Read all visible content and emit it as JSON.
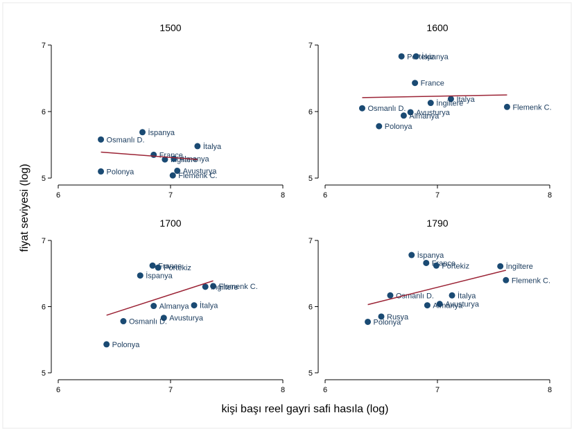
{
  "figure": {
    "ylabel": "fiyat seviyesi (log)",
    "xlabel": "kişi başı reel gayri safi hasıla (log)",
    "colors": {
      "point": "#1a4a73",
      "label": "#1a3b5d",
      "fit": "#9b2335",
      "axis": "#000000"
    }
  },
  "chart_data": [
    {
      "type": "scatter",
      "title": "1500",
      "xlim": [
        6,
        8
      ],
      "ylim": [
        5,
        7
      ],
      "xticks": [
        "6",
        "7",
        "8"
      ],
      "yticks": [
        "5",
        "6",
        "7"
      ],
      "points": [
        {
          "label": "İspanya",
          "x": 6.75,
          "y": 5.69
        },
        {
          "label": "Osmanlı D.",
          "x": 6.38,
          "y": 5.58
        },
        {
          "label": "France",
          "x": 6.85,
          "y": 5.35
        },
        {
          "label": "İngiltere",
          "x": 6.95,
          "y": 5.28
        },
        {
          "label": "Almanya",
          "x": 7.03,
          "y": 5.29
        },
        {
          "label": "İtalya",
          "x": 7.24,
          "y": 5.48
        },
        {
          "label": "Avusturya",
          "x": 7.06,
          "y": 5.11
        },
        {
          "label": "Polonya",
          "x": 6.38,
          "y": 5.1
        },
        {
          "label": "Flemenk C.",
          "x": 7.02,
          "y": 5.04
        }
      ],
      "fit": {
        "x": [
          6.38,
          7.24
        ],
        "y": [
          5.39,
          5.28
        ]
      }
    },
    {
      "type": "scatter",
      "title": "1600",
      "xlim": [
        6,
        8
      ],
      "ylim": [
        5,
        7
      ],
      "xticks": [
        "6",
        "7",
        "8"
      ],
      "yticks": [
        "5",
        "6",
        "7"
      ],
      "points": [
        {
          "label": "Portekiz",
          "x": 6.68,
          "y": 6.83
        },
        {
          "label": "İspanya",
          "x": 6.81,
          "y": 6.83
        },
        {
          "label": "France",
          "x": 6.8,
          "y": 6.43
        },
        {
          "label": "İtalya",
          "x": 7.12,
          "y": 6.19
        },
        {
          "label": "İngiltere",
          "x": 6.94,
          "y": 6.13
        },
        {
          "label": "Flemenk C.",
          "x": 7.62,
          "y": 6.07
        },
        {
          "label": "Osmanlı D.",
          "x": 6.33,
          "y": 6.05
        },
        {
          "label": "Avusturya",
          "x": 6.76,
          "y": 5.99
        },
        {
          "label": "Almanya",
          "x": 6.7,
          "y": 5.94
        },
        {
          "label": "Polonya",
          "x": 6.48,
          "y": 5.78
        }
      ],
      "fit": {
        "x": [
          6.33,
          7.62
        ],
        "y": [
          6.21,
          6.25
        ]
      }
    },
    {
      "type": "scatter",
      "title": "1700",
      "xlim": [
        6,
        8
      ],
      "ylim": [
        5,
        7
      ],
      "xticks": [
        "6",
        "7",
        "8"
      ],
      "yticks": [
        "5",
        "6",
        "7"
      ],
      "points": [
        {
          "label": "France",
          "x": 6.84,
          "y": 6.62
        },
        {
          "label": "Portekiz",
          "x": 6.89,
          "y": 6.59
        },
        {
          "label": "İspanya",
          "x": 6.73,
          "y": 6.47
        },
        {
          "label": "Flemenk C.",
          "x": 7.38,
          "y": 6.31
        },
        {
          "label": "İngiltere",
          "x": 7.31,
          "y": 6.3
        },
        {
          "label": "İtalya",
          "x": 7.21,
          "y": 6.02
        },
        {
          "label": "Almanya",
          "x": 6.85,
          "y": 6.01
        },
        {
          "label": "Avusturya",
          "x": 6.94,
          "y": 5.83
        },
        {
          "label": "Osmanlı D.",
          "x": 6.58,
          "y": 5.78
        },
        {
          "label": "Polonya",
          "x": 6.43,
          "y": 5.43
        }
      ],
      "fit": {
        "x": [
          6.43,
          7.38
        ],
        "y": [
          5.87,
          6.39
        ]
      }
    },
    {
      "type": "scatter",
      "title": "1790",
      "xlim": [
        6,
        8
      ],
      "ylim": [
        5,
        7
      ],
      "xticks": [
        "6",
        "7",
        "8"
      ],
      "yticks": [
        "5",
        "6",
        "7"
      ],
      "points": [
        {
          "label": "İspanya",
          "x": 6.77,
          "y": 6.78
        },
        {
          "label": "France",
          "x": 6.9,
          "y": 6.66
        },
        {
          "label": "Portekiz",
          "x": 6.99,
          "y": 6.62
        },
        {
          "label": "İngiltere",
          "x": 7.56,
          "y": 6.61
        },
        {
          "label": "Flemenk C.",
          "x": 7.61,
          "y": 6.4
        },
        {
          "label": "Osmanlı D.",
          "x": 6.58,
          "y": 6.17
        },
        {
          "label": "İtalya",
          "x": 7.13,
          "y": 6.17
        },
        {
          "label": "Avusturya",
          "x": 7.02,
          "y": 6.04
        },
        {
          "label": "Almanya",
          "x": 6.91,
          "y": 6.02
        },
        {
          "label": "Rusya",
          "x": 6.5,
          "y": 5.85
        },
        {
          "label": "Polonya",
          "x": 6.38,
          "y": 5.77
        }
      ],
      "fit": {
        "x": [
          6.38,
          7.61
        ],
        "y": [
          6.03,
          6.55
        ]
      }
    }
  ]
}
